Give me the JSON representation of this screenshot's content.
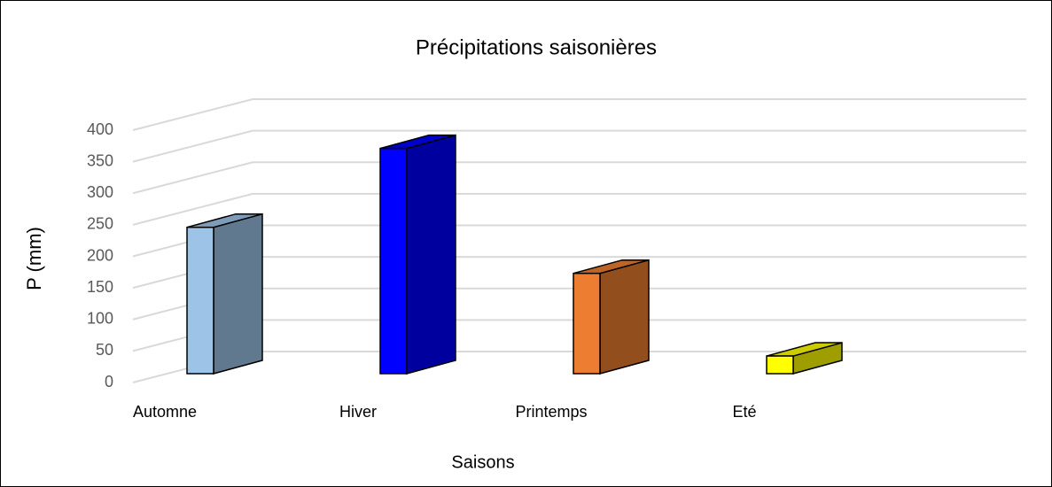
{
  "chart_data": {
    "type": "bar3d",
    "title": "Précipitations saisonières",
    "x_label": "Saisons",
    "y_label": "P (mm)",
    "categories": [
      "Automne",
      "Hiver",
      "Printemps",
      "Eté"
    ],
    "values": [
      232,
      357,
      159,
      28
    ],
    "colors": [
      "#9dc3e6",
      "#0000ff",
      "#ed7d31",
      "#ffff00"
    ],
    "ylim": [
      0,
      400
    ],
    "yticks": [
      0,
      50,
      100,
      150,
      200,
      250,
      300,
      350,
      400
    ],
    "grid": true
  }
}
